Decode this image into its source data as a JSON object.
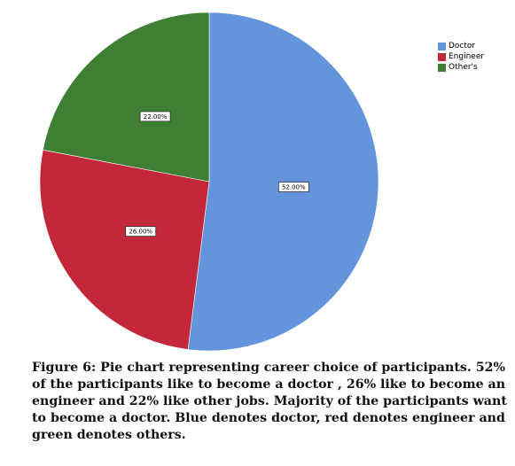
{
  "colors": {
    "Doctor": "#6494dc",
    "Engineer": "#c3283a",
    "Other's": "#3e7f34"
  },
  "chart_data": {
    "type": "pie",
    "categories": [
      "Doctor",
      "Engineer",
      "Other's"
    ],
    "values": [
      52.0,
      26.0,
      22.0
    ],
    "value_labels": [
      "52.00%",
      "26.00%",
      "22.00%"
    ],
    "title": "",
    "legend_position": "top-right",
    "start_angle_deg": 0,
    "direction": "clockwise"
  },
  "caption": "Figure 6: Pie chart representing career choice of participants. 52% of the participants like to become a doctor , 26% like to become an engineer and 22% like other jobs. Majority of the participants want to become a doctor. Blue denotes doctor, red denotes engineer and green denotes others."
}
